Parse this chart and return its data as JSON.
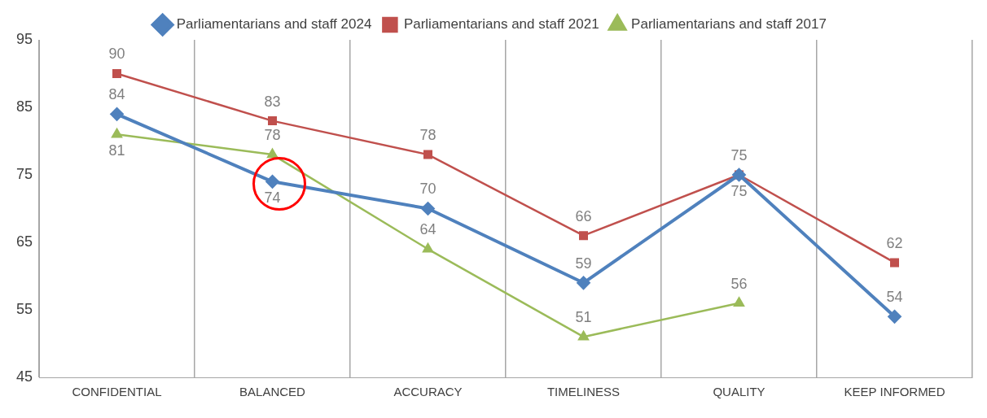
{
  "chart_data": {
    "type": "line",
    "categories": [
      "CONFIDENTIAL",
      "BALANCED",
      "ACCURACY",
      "TIMELINESS",
      "QUALITY",
      "KEEP INFORMED"
    ],
    "series": [
      {
        "name": "Parliamentarians and staff 2024",
        "color": "#4f81bd",
        "marker": "diamond",
        "values": [
          84,
          74,
          70,
          59,
          75,
          54
        ]
      },
      {
        "name": "Parliamentarians and staff 2021",
        "color": "#c0504d",
        "marker": "square",
        "values": [
          90,
          83,
          78,
          66,
          75,
          62
        ]
      },
      {
        "name": "Parliamentarians and staff 2017",
        "color": "#9bbb59",
        "marker": "triangle",
        "values": [
          81,
          78,
          64,
          51,
          56,
          null
        ]
      }
    ],
    "ylim": [
      45,
      95
    ],
    "yticks": [
      45,
      55,
      65,
      75,
      85,
      95
    ],
    "grid": "x",
    "legend": "top",
    "data_labels": true,
    "line_style": "solid"
  }
}
